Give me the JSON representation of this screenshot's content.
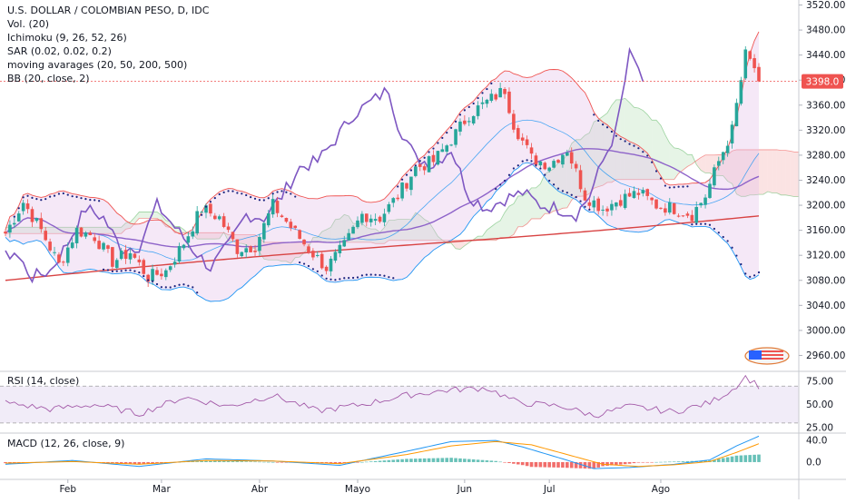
{
  "header": {
    "title": "U.S. DOLLAR / COLOMBIAN PESO, D, IDC",
    "indicators": [
      "Vol. (20)",
      "Ichimoku (9, 26, 52, 26)",
      "SAR (0.02, 0.02, 0.2)",
      "moving avarages (20, 50, 200, 500)",
      "BB (20, close, 2)"
    ]
  },
  "colors": {
    "up": "#26a69a",
    "down": "#ef5350",
    "bb": "#2196f3",
    "ichimoku_cloud_bull": "#a5d6a7",
    "ichimoku_cloud_bear": "#ef9a9a",
    "ma_slow": "#d84343",
    "ma_purple": "#8e63c9",
    "sar": "#1a237e",
    "rsi": "#a35aa8",
    "macd": "#2196f3",
    "signal": "#ff9800",
    "current_price_badge": "#ef5350"
  },
  "chart_data": [
    {
      "type": "candlestick",
      "title": "U.S. DOLLAR / COLOMBIAN PESO, D, IDC",
      "x_tick_labels": [
        "Feb",
        "Mar",
        "Abr",
        "Mayo",
        "Jun",
        "Jul",
        "Ago"
      ],
      "y_tick_labels": [
        "2960.00",
        "3000.00",
        "3040.00",
        "3080.00",
        "3120.00",
        "3160.00",
        "3200.00",
        "3240.00",
        "3280.00",
        "3320.00",
        "3360.00",
        "3400.00",
        "3440.00",
        "3480.00",
        "3520.00"
      ],
      "ylim": [
        2936,
        3528
      ],
      "current_price": 3398.0,
      "current_price_label": "3398.0",
      "close_series_anchors": [
        {
          "x": 0,
          "y": 3155
        },
        {
          "x": 4,
          "y": 3205
        },
        {
          "x": 8,
          "y": 3160
        },
        {
          "x": 12,
          "y": 3105
        },
        {
          "x": 16,
          "y": 3160
        },
        {
          "x": 20,
          "y": 3150
        },
        {
          "x": 24,
          "y": 3110
        },
        {
          "x": 28,
          "y": 3125
        },
        {
          "x": 32,
          "y": 3085
        },
        {
          "x": 36,
          "y": 3095
        },
        {
          "x": 40,
          "y": 3140
        },
        {
          "x": 44,
          "y": 3195
        },
        {
          "x": 48,
          "y": 3180
        },
        {
          "x": 52,
          "y": 3130
        },
        {
          "x": 56,
          "y": 3135
        },
        {
          "x": 60,
          "y": 3200
        },
        {
          "x": 64,
          "y": 3165
        },
        {
          "x": 68,
          "y": 3130
        },
        {
          "x": 72,
          "y": 3100
        },
        {
          "x": 76,
          "y": 3135
        },
        {
          "x": 80,
          "y": 3185
        },
        {
          "x": 84,
          "y": 3180
        },
        {
          "x": 88,
          "y": 3215
        },
        {
          "x": 92,
          "y": 3260
        },
        {
          "x": 96,
          "y": 3270
        },
        {
          "x": 100,
          "y": 3305
        },
        {
          "x": 104,
          "y": 3345
        },
        {
          "x": 108,
          "y": 3365
        },
        {
          "x": 112,
          "y": 3385
        },
        {
          "x": 114,
          "y": 3330
        },
        {
          "x": 118,
          "y": 3275
        },
        {
          "x": 122,
          "y": 3265
        },
        {
          "x": 126,
          "y": 3290
        },
        {
          "x": 130,
          "y": 3215
        },
        {
          "x": 134,
          "y": 3195
        },
        {
          "x": 138,
          "y": 3210
        },
        {
          "x": 142,
          "y": 3220
        },
        {
          "x": 146,
          "y": 3200
        },
        {
          "x": 150,
          "y": 3195
        },
        {
          "x": 154,
          "y": 3185
        },
        {
          "x": 157,
          "y": 3215
        },
        {
          "x": 160,
          "y": 3270
        },
        {
          "x": 163,
          "y": 3320
        },
        {
          "x": 166,
          "y": 3440
        },
        {
          "x": 168,
          "y": 3420
        },
        {
          "x": 169,
          "y": 3398
        }
      ],
      "overlays": [
        {
          "name": "Bollinger Bands (20, close, 2)"
        },
        {
          "name": "Ichimoku (9, 26, 52, 26)"
        },
        {
          "name": "Parabolic SAR (0.02, 0.02, 0.2)"
        },
        {
          "name": "Moving averages (20, 50, 200, 500)"
        }
      ]
    },
    {
      "type": "line",
      "title": "RSI (14, close)",
      "y_tick_labels": [
        "75.00",
        "50.00",
        "25.00"
      ],
      "ylim": [
        20,
        85
      ],
      "overbought": 70,
      "oversold": 30,
      "anchors": [
        {
          "x": 0,
          "y": 52
        },
        {
          "x": 10,
          "y": 45
        },
        {
          "x": 20,
          "y": 50
        },
        {
          "x": 30,
          "y": 40
        },
        {
          "x": 40,
          "y": 58
        },
        {
          "x": 50,
          "y": 48
        },
        {
          "x": 60,
          "y": 60
        },
        {
          "x": 70,
          "y": 43
        },
        {
          "x": 80,
          "y": 50
        },
        {
          "x": 90,
          "y": 60
        },
        {
          "x": 100,
          "y": 66
        },
        {
          "x": 108,
          "y": 68
        },
        {
          "x": 115,
          "y": 52
        },
        {
          "x": 125,
          "y": 48
        },
        {
          "x": 132,
          "y": 38
        },
        {
          "x": 140,
          "y": 48
        },
        {
          "x": 150,
          "y": 42
        },
        {
          "x": 158,
          "y": 52
        },
        {
          "x": 163,
          "y": 66
        },
        {
          "x": 166,
          "y": 80
        },
        {
          "x": 169,
          "y": 70
        }
      ]
    },
    {
      "type": "line",
      "title": "MACD (12, 26, close, 9)",
      "y_tick_labels": [
        "40.0",
        "0.0"
      ],
      "ylim": [
        -32,
        52
      ],
      "macd_anchors": [
        {
          "x": 0,
          "y": -4
        },
        {
          "x": 15,
          "y": 3
        },
        {
          "x": 30,
          "y": -8
        },
        {
          "x": 45,
          "y": 6
        },
        {
          "x": 60,
          "y": 2
        },
        {
          "x": 75,
          "y": -6
        },
        {
          "x": 90,
          "y": 20
        },
        {
          "x": 100,
          "y": 38
        },
        {
          "x": 110,
          "y": 40
        },
        {
          "x": 116,
          "y": 28
        },
        {
          "x": 125,
          "y": 6
        },
        {
          "x": 132,
          "y": -12
        },
        {
          "x": 140,
          "y": -10
        },
        {
          "x": 150,
          "y": -4
        },
        {
          "x": 158,
          "y": 4
        },
        {
          "x": 164,
          "y": 30
        },
        {
          "x": 169,
          "y": 48
        }
      ],
      "signal_anchors": [
        {
          "x": 0,
          "y": -2
        },
        {
          "x": 15,
          "y": 1
        },
        {
          "x": 30,
          "y": -4
        },
        {
          "x": 45,
          "y": 3
        },
        {
          "x": 60,
          "y": 2
        },
        {
          "x": 75,
          "y": -3
        },
        {
          "x": 90,
          "y": 14
        },
        {
          "x": 100,
          "y": 30
        },
        {
          "x": 110,
          "y": 38
        },
        {
          "x": 118,
          "y": 32
        },
        {
          "x": 126,
          "y": 14
        },
        {
          "x": 134,
          "y": -4
        },
        {
          "x": 142,
          "y": -8
        },
        {
          "x": 150,
          "y": -5
        },
        {
          "x": 158,
          "y": 1
        },
        {
          "x": 164,
          "y": 18
        },
        {
          "x": 169,
          "y": 34
        }
      ]
    }
  ]
}
